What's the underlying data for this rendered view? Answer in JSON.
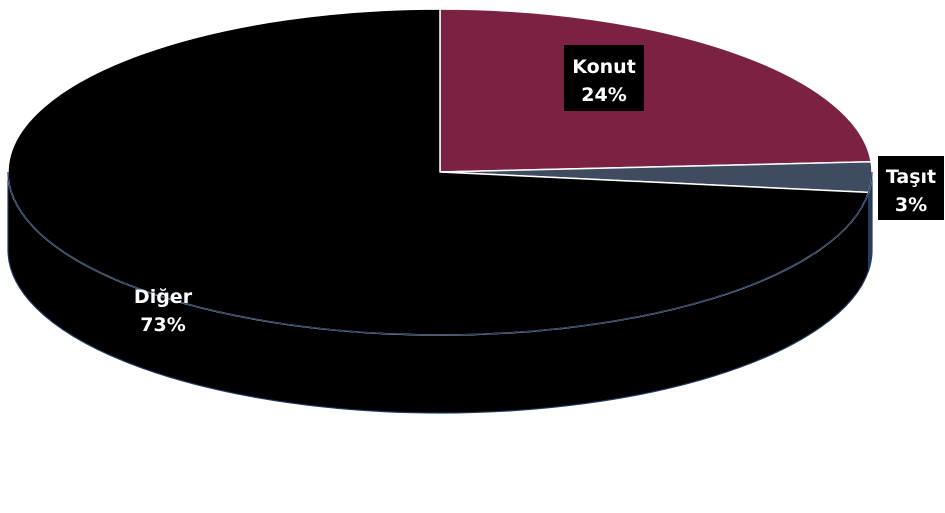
{
  "chart_data": {
    "type": "pie",
    "title": "",
    "slices": [
      {
        "label": "Konut",
        "value": 24,
        "value_label": "24%",
        "color": "#7b2244"
      },
      {
        "label": "Taşıt",
        "value": 3,
        "value_label": "3%",
        "color": "#3f4b61"
      },
      {
        "label": "Diğer",
        "value": 73,
        "value_label": "73%",
        "color": "#000000"
      }
    ],
    "units": "%",
    "three_d": true,
    "legend": "none",
    "data_labels": "on slices"
  }
}
